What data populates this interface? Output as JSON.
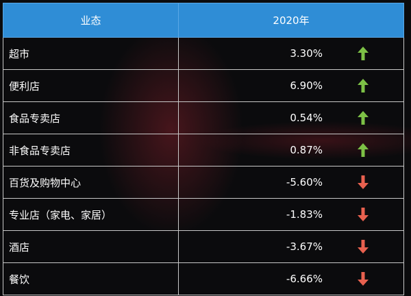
{
  "table": {
    "header": {
      "col1": "业态",
      "col2": "2020年"
    },
    "rows": [
      {
        "name": "超市",
        "value": "3.30%",
        "trend": "up"
      },
      {
        "name": "便利店",
        "value": "6.90%",
        "trend": "up"
      },
      {
        "name": "食品专卖店",
        "value": "0.54%",
        "trend": "up"
      },
      {
        "name": "非食品专卖店",
        "value": "0.87%",
        "trend": "up"
      },
      {
        "name": "百货及购物中心",
        "value": "-5.60%",
        "trend": "down"
      },
      {
        "name": "专业店（家电、家居）",
        "value": "-1.83%",
        "trend": "down"
      },
      {
        "name": "酒店",
        "value": "-3.67%",
        "trend": "down"
      },
      {
        "name": "餐饮",
        "value": "-6.66%",
        "trend": "down"
      }
    ]
  },
  "colors": {
    "header_bg": "#2f8dd6",
    "up_arrow": "#7dc146",
    "down_arrow": "#e8614f",
    "background": "#0b0b0d"
  },
  "icons": {
    "up": "arrow-up-icon",
    "down": "arrow-down-icon"
  }
}
